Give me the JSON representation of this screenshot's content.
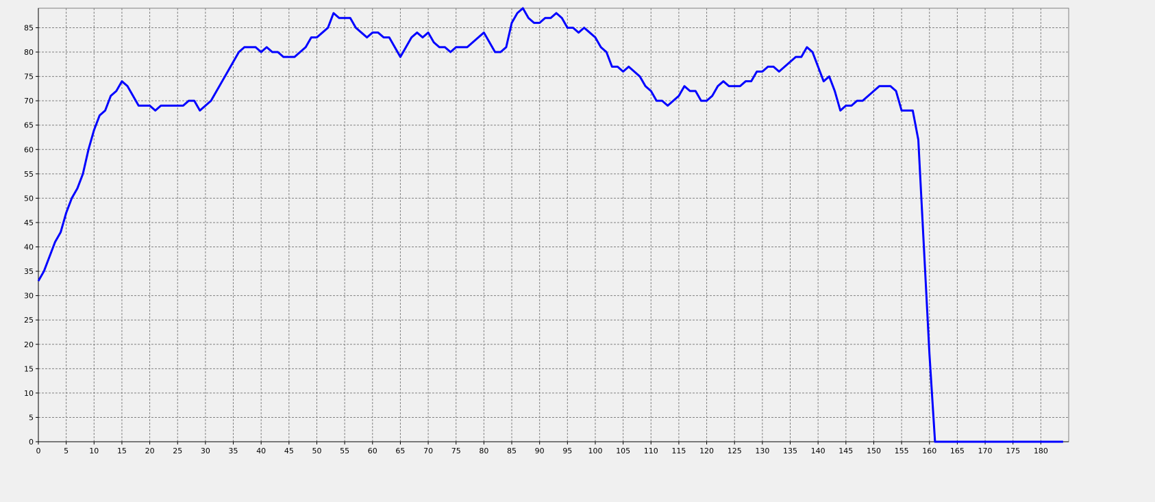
{
  "chart_data": {
    "type": "line",
    "x": [
      0,
      1,
      2,
      3,
      4,
      5,
      6,
      7,
      8,
      9,
      10,
      11,
      12,
      13,
      14,
      15,
      16,
      17,
      18,
      19,
      20,
      21,
      22,
      23,
      24,
      25,
      26,
      27,
      28,
      29,
      30,
      31,
      32,
      33,
      34,
      35,
      36,
      37,
      38,
      39,
      40,
      41,
      42,
      43,
      44,
      45,
      46,
      47,
      48,
      49,
      50,
      51,
      52,
      53,
      54,
      55,
      56,
      57,
      58,
      59,
      60,
      61,
      62,
      63,
      64,
      65,
      66,
      67,
      68,
      69,
      70,
      71,
      72,
      73,
      74,
      75,
      76,
      77,
      78,
      79,
      80,
      81,
      82,
      83,
      84,
      85,
      86,
      87,
      88,
      89,
      90,
      91,
      92,
      93,
      94,
      95,
      96,
      97,
      98,
      99,
      100,
      101,
      102,
      103,
      104,
      105,
      106,
      107,
      108,
      109,
      110,
      111,
      112,
      113,
      114,
      115,
      116,
      117,
      118,
      119,
      120,
      121,
      122,
      123,
      124,
      125,
      126,
      127,
      128,
      129,
      130,
      131,
      132,
      133,
      134,
      135,
      136,
      137,
      138,
      139,
      140,
      141,
      142,
      143,
      144,
      145,
      146,
      147,
      148,
      149,
      150,
      151,
      152,
      153,
      154,
      155,
      156,
      157,
      158,
      159,
      160,
      161,
      162,
      163,
      164,
      165,
      166,
      167,
      168,
      169,
      170,
      171,
      172,
      173,
      174,
      175,
      176,
      177,
      178,
      179,
      180,
      181,
      182,
      183,
      184
    ],
    "series": [
      {
        "color": "#0000ff",
        "values": [
          33,
          35,
          38,
          41,
          43,
          47,
          50,
          52,
          55,
          60,
          64,
          67,
          68,
          71,
          72,
          74,
          73,
          71,
          69,
          69,
          69,
          68,
          69,
          69,
          69,
          69,
          69,
          70,
          70,
          68,
          69,
          70,
          72,
          74,
          76,
          78,
          80,
          81,
          81,
          81,
          80,
          81,
          80,
          80,
          79,
          79,
          79,
          80,
          81,
          83,
          83,
          84,
          85,
          88,
          87,
          87,
          87,
          85,
          84,
          83,
          84,
          84,
          83,
          83,
          81,
          79,
          81,
          83,
          84,
          83,
          84,
          82,
          81,
          81,
          80,
          81,
          81,
          81,
          82,
          83,
          84,
          82,
          80,
          80,
          81,
          86,
          88,
          89,
          87,
          86,
          86,
          87,
          87,
          88,
          87,
          85,
          85,
          84,
          85,
          84,
          83,
          81,
          80,
          77,
          77,
          76,
          77,
          76,
          75,
          73,
          72,
          70,
          70,
          69,
          70,
          71,
          73,
          72,
          72,
          70,
          70,
          71,
          73,
          74,
          73,
          73,
          73,
          74,
          74,
          76,
          76,
          77,
          77,
          76,
          77,
          78,
          79,
          79,
          81,
          80,
          77,
          74,
          75,
          72,
          68,
          69,
          69,
          70,
          70,
          71,
          72,
          73,
          73,
          73,
          72,
          68,
          68,
          68,
          62,
          40,
          18,
          0,
          0,
          0,
          0,
          0,
          0,
          0,
          0,
          0,
          0,
          0,
          0,
          0,
          0,
          0,
          0,
          0,
          0,
          0,
          0,
          0,
          0,
          0,
          0
        ]
      }
    ],
    "xlim": [
      0,
      185
    ],
    "ylim": [
      0,
      89
    ],
    "xticks": [
      0,
      5,
      10,
      15,
      20,
      25,
      30,
      35,
      40,
      45,
      50,
      55,
      60,
      65,
      70,
      75,
      80,
      85,
      90,
      95,
      100,
      105,
      110,
      115,
      120,
      125,
      130,
      135,
      140,
      145,
      150,
      155,
      160,
      165,
      170,
      175,
      180
    ],
    "yticks": [
      0,
      5,
      10,
      15,
      20,
      25,
      30,
      35,
      40,
      45,
      50,
      55,
      60,
      65,
      70,
      75,
      80,
      85
    ],
    "grid": true
  }
}
